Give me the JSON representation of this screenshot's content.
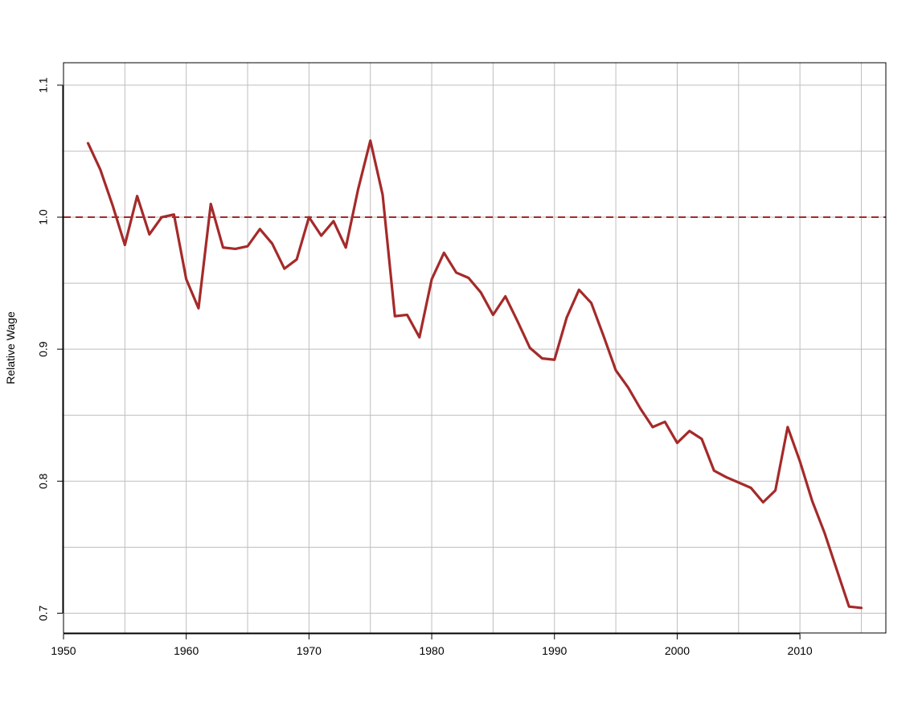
{
  "chart_data": {
    "type": "line",
    "title": "",
    "xlabel": "",
    "ylabel": "Relative Wage",
    "xlim": [
      1950,
      2017
    ],
    "ylim": [
      0.685,
      1.117
    ],
    "x_ticks": [
      1950,
      1960,
      1970,
      1980,
      1990,
      2000,
      2010
    ],
    "x_tick_labels": [
      "1950",
      "1960",
      "1970",
      "1980",
      "1990",
      "2000",
      "2010"
    ],
    "y_ticks": [
      0.7,
      0.8,
      0.9,
      1.0,
      1.1
    ],
    "y_tick_labels": [
      "0.7",
      "0.8",
      "0.9",
      "1.0",
      "1.1"
    ],
    "grid": true,
    "series_color": "#a52a2a",
    "reference_line": {
      "y": 1.0,
      "style": "dashed",
      "color": "#a52a2a"
    },
    "series": [
      {
        "x": [
          1952,
          1953,
          1954,
          1955,
          1956,
          1957,
          1958,
          1959,
          1960,
          1961,
          1962,
          1963,
          1964,
          1965,
          1966,
          1967,
          1968,
          1969,
          1970,
          1971,
          1972,
          1973,
          1974,
          1975,
          1976,
          1977,
          1978,
          1979,
          1980,
          1981,
          1982,
          1983,
          1984,
          1985,
          1986,
          1987,
          1988,
          1989,
          1990,
          1991,
          1992,
          1993,
          1994,
          1995,
          1996,
          1997,
          1998,
          1999,
          2000,
          2001,
          2002,
          2003,
          2004,
          2005,
          2006,
          2007,
          2008,
          2009,
          2010,
          2011,
          2012,
          2013,
          2014,
          2015
        ],
        "values": [
          1.056,
          1.036,
          1.009,
          0.979,
          1.016,
          0.987,
          1.0,
          1.002,
          0.953,
          0.931,
          1.01,
          0.977,
          0.976,
          0.978,
          0.991,
          0.98,
          0.961,
          0.968,
          1.0,
          0.986,
          0.997,
          0.977,
          1.021,
          1.058,
          1.017,
          0.925,
          0.926,
          0.909,
          0.953,
          0.973,
          0.958,
          0.954,
          0.943,
          0.926,
          0.94,
          0.921,
          0.901,
          0.893,
          0.892,
          0.924,
          0.945,
          0.935,
          0.91,
          0.884,
          0.871,
          0.855,
          0.841,
          0.845,
          0.829,
          0.838,
          0.832,
          0.808,
          0.803,
          0.799,
          0.795,
          0.784,
          0.793,
          0.841,
          0.815,
          0.785,
          0.761,
          0.733,
          0.705,
          0.704
        ]
      }
    ]
  }
}
